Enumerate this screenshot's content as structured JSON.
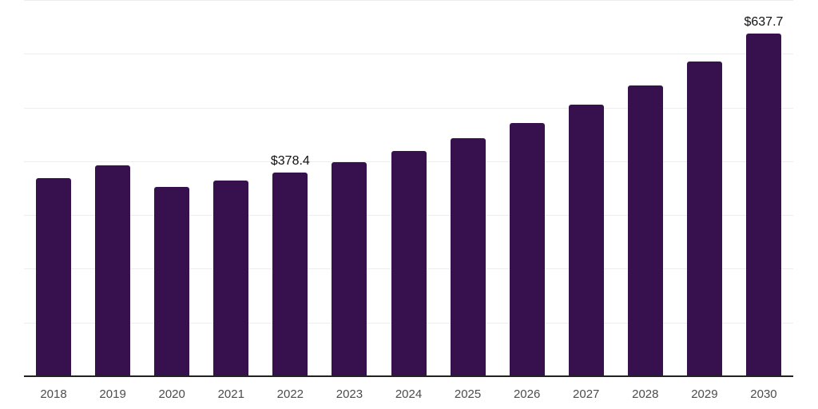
{
  "chart_data": {
    "type": "bar",
    "title": "",
    "xlabel": "",
    "ylabel": "",
    "categories": [
      "2018",
      "2019",
      "2020",
      "2021",
      "2022",
      "2023",
      "2024",
      "2025",
      "2026",
      "2027",
      "2028",
      "2029",
      "2030"
    ],
    "values": [
      368.5,
      393.0,
      352.5,
      363.5,
      378.4,
      399.0,
      419.0,
      443.5,
      471.5,
      505.5,
      540.5,
      586.0,
      637.7
    ],
    "data_labels": [
      {
        "index": 4,
        "text": "$378.4"
      },
      {
        "index": 12,
        "text": "$637.7"
      }
    ],
    "ylim": [
      0,
      700
    ],
    "grid_interval": 100,
    "grid_on": true,
    "legend": "none",
    "colors": {
      "bar": "#36114E",
      "axis": "#222222",
      "gridline": "#ededed",
      "tick_label": "#4C4C4C",
      "data_label": "#111111",
      "background": "#FFFFFF"
    }
  }
}
